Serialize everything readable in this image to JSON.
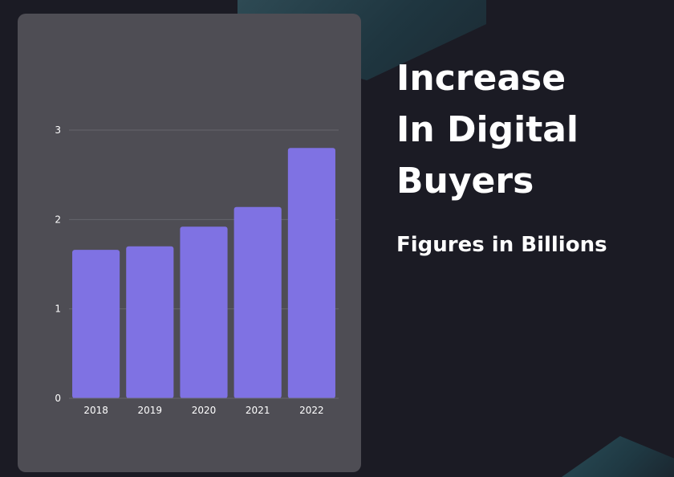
{
  "heading": {
    "lines": [
      "Increase",
      "In Digital",
      "Buyers"
    ],
    "subtitle": "Figures in Billions"
  },
  "colors": {
    "background": "#1b1b24",
    "card": "#4e4d54",
    "bar": "#7f72e3",
    "text": "#ffffff",
    "grid": "#66656c"
  },
  "chart_data": {
    "type": "bar",
    "categories": [
      "2018",
      "2019",
      "2020",
      "2021",
      "2022"
    ],
    "values": [
      1.66,
      1.7,
      1.92,
      2.14,
      2.8
    ],
    "yticks": [
      0,
      1,
      2,
      3
    ],
    "ylim": [
      0,
      3
    ],
    "title": "",
    "xlabel": "",
    "ylabel": "",
    "grid": true,
    "legend": "none"
  }
}
